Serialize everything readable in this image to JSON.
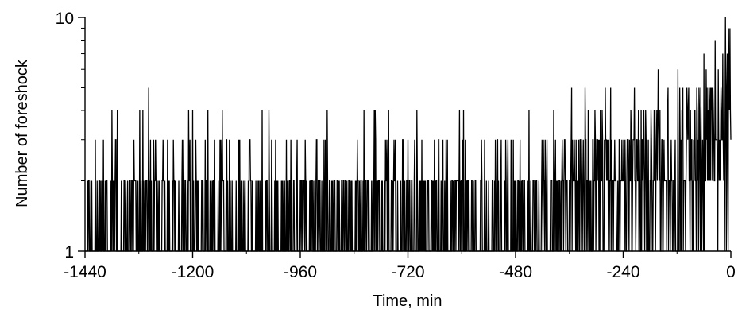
{
  "chart_data": {
    "type": "line",
    "title": "",
    "xlabel": "Time, min",
    "ylabel": "Number of foreshock",
    "xlim": [
      -1440,
      0
    ],
    "ylim": [
      1,
      10
    ],
    "yscale": "log",
    "grid": false,
    "legend": "none",
    "line_color": "#000000",
    "xticks": [
      -1440,
      -1200,
      -960,
      -720,
      -480,
      -240,
      0
    ],
    "xtick_labels": [
      "-1440",
      "-1200",
      "-960",
      "-720",
      "-480",
      "-240",
      "0"
    ],
    "yticks": [
      1,
      10
    ],
    "ytick_labels": [
      "1",
      "10"
    ],
    "seed": 20240517,
    "regime_segments": [
      {
        "x_from": -1440,
        "x_to": -540,
        "level_weights": {
          "1": 0.62,
          "2": 0.3,
          "3": 0.07,
          "4": 0.01
        }
      },
      {
        "x_from": -540,
        "x_to": -360,
        "level_weights": {
          "1": 0.55,
          "2": 0.32,
          "3": 0.11,
          "4": 0.02
        }
      },
      {
        "x_from": -360,
        "x_to": -120,
        "level_weights": {
          "1": 0.3,
          "2": 0.38,
          "3": 0.24,
          "4": 0.08
        }
      },
      {
        "x_from": -120,
        "x_to": 0,
        "level_weights": {
          "1": 0.18,
          "2": 0.3,
          "3": 0.26,
          "4": 0.16,
          "5": 0.1
        }
      }
    ],
    "notable_points": [
      {
        "x": -1380,
        "y": 4
      },
      {
        "x": -1368,
        "y": 4
      },
      {
        "x": -1318,
        "y": 4
      },
      {
        "x": -1298,
        "y": 5
      },
      {
        "x": -1200,
        "y": 4
      },
      {
        "x": -1045,
        "y": 4
      },
      {
        "x": -1030,
        "y": 4
      },
      {
        "x": -763,
        "y": 4
      },
      {
        "x": -355,
        "y": 5
      },
      {
        "x": -325,
        "y": 5
      },
      {
        "x": -280,
        "y": 5
      },
      {
        "x": -268,
        "y": 5
      },
      {
        "x": -215,
        "y": 5
      },
      {
        "x": -162,
        "y": 6
      },
      {
        "x": -140,
        "y": 5
      },
      {
        "x": -118,
        "y": 6
      },
      {
        "x": -98,
        "y": 5
      },
      {
        "x": -60,
        "y": 7
      },
      {
        "x": -55,
        "y": 6
      },
      {
        "x": -35,
        "y": 8
      },
      {
        "x": -28,
        "y": 6
      },
      {
        "x": -18,
        "y": 7
      },
      {
        "x": -12,
        "y": 10
      },
      {
        "x": -8,
        "y": 7
      },
      {
        "x": -5,
        "y": 9
      },
      {
        "x": -2,
        "y": 9
      }
    ]
  }
}
